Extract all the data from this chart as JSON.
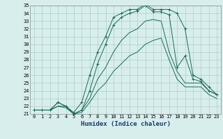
{
  "xlabel": "Humidex (Indice chaleur)",
  "background_color": "#d8eeec",
  "grid_color": "#aacfcc",
  "line_color": "#1a6b5a",
  "hours": [
    0,
    1,
    2,
    3,
    4,
    5,
    6,
    7,
    8,
    9,
    10,
    11,
    12,
    13,
    14,
    15,
    16,
    17,
    18,
    19,
    20,
    21,
    22,
    23
  ],
  "line1": [
    21.5,
    21.5,
    21.5,
    22.5,
    22.0,
    21.2,
    22.5,
    26.0,
    29.0,
    31.0,
    33.5,
    34.0,
    34.5,
    34.5,
    35.2,
    34.5,
    34.5,
    34.5,
    34.0,
    32.0,
    26.0,
    25.5,
    24.5,
    23.5
  ],
  "line2": [
    21.5,
    21.5,
    21.5,
    22.5,
    22.0,
    21.0,
    21.5,
    24.0,
    27.5,
    30.0,
    32.5,
    33.5,
    34.0,
    34.3,
    35.0,
    34.2,
    34.2,
    33.8,
    27.0,
    28.5,
    25.5,
    25.2,
    24.0,
    23.5
  ],
  "line3": [
    21.5,
    21.5,
    21.5,
    22.0,
    22.0,
    21.0,
    21.5,
    23.0,
    25.5,
    27.0,
    29.0,
    30.5,
    31.5,
    32.0,
    33.0,
    33.2,
    33.0,
    29.0,
    26.5,
    25.0,
    25.0,
    25.0,
    24.0,
    23.5
  ],
  "line4": [
    21.5,
    21.5,
    21.5,
    22.0,
    21.8,
    21.0,
    21.2,
    22.5,
    24.0,
    25.0,
    26.5,
    27.5,
    28.5,
    29.0,
    30.0,
    30.5,
    30.8,
    28.0,
    25.5,
    24.5,
    24.5,
    24.5,
    23.5,
    23.0
  ],
  "ylim": [
    21,
    35
  ],
  "yticks": [
    21,
    22,
    23,
    24,
    25,
    26,
    27,
    28,
    29,
    30,
    31,
    32,
    33,
    34,
    35
  ],
  "xticks": [
    0,
    1,
    2,
    3,
    4,
    5,
    6,
    7,
    8,
    9,
    10,
    11,
    12,
    13,
    14,
    15,
    16,
    17,
    18,
    19,
    20,
    21,
    22,
    23
  ],
  "tick_fontsize": 5.0,
  "xlabel_fontsize": 6.5,
  "xlabel_color": "#1a3a6a"
}
